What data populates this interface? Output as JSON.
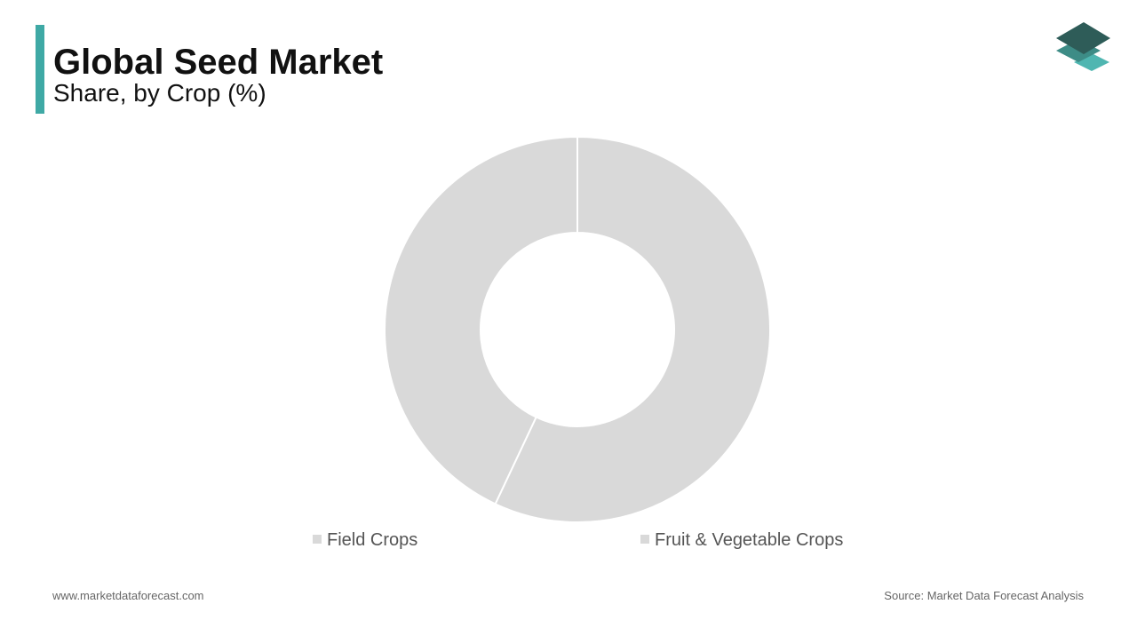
{
  "chart_data": {
    "type": "donut",
    "title": "Global Seed Market",
    "subtitle": "Share, by Crop (%)",
    "categories": [
      "Field Crops",
      "Fruit & Vegetable Crops"
    ],
    "values": [
      57,
      43
    ],
    "colors": [
      "#d9d9d9",
      "#d9d9d9"
    ]
  },
  "footer": {
    "website": "www.marketdataforecast.com",
    "source": "Source: Market Data Forecast Analysis"
  }
}
